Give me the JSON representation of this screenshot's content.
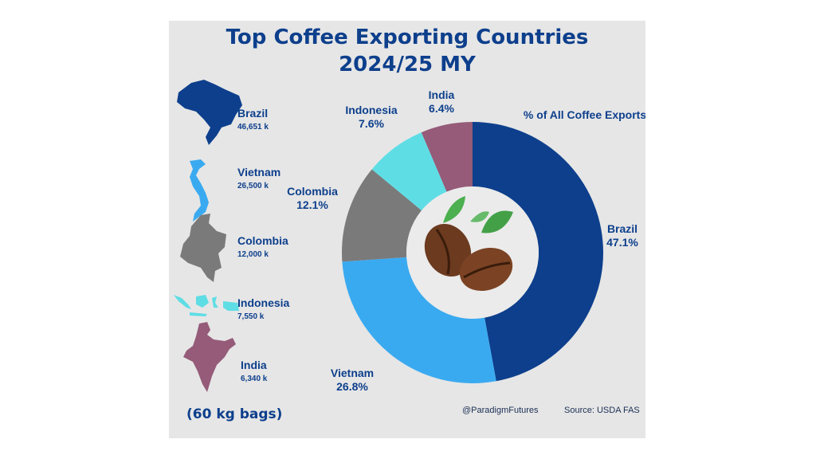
{
  "title_line1": "Top Coffee Exporting Countries",
  "title_line2": "2024/25 MY",
  "chart_subtitle": "% of All Coffee Exports",
  "unit_note": "(60 kg bags)",
  "handle": "@ParadigmFutures",
  "source": "Source: USDA FAS",
  "countries": [
    {
      "name": "Brazil",
      "value": "46,651 k",
      "color": "#0d3f8c",
      "icon": "brazil-map-icon"
    },
    {
      "name": "Vietnam",
      "value": "26,500 k",
      "color": "#3aaaf0",
      "icon": "vietnam-map-icon"
    },
    {
      "name": "Colombia",
      "value": "12,000 k",
      "color": "#7a7a7a",
      "icon": "colombia-map-icon"
    },
    {
      "name": "Indonesia",
      "value": "7,550 k",
      "color": "#5fdde5",
      "icon": "indonesia-map-icon"
    },
    {
      "name": "India",
      "value": "6,340 k",
      "color": "#955b78",
      "icon": "india-map-icon"
    }
  ],
  "chart_data": {
    "type": "pie",
    "title": "% of All Coffee Exports",
    "categories": [
      "Brazil",
      "Vietnam",
      "Colombia",
      "Indonesia",
      "India"
    ],
    "values": [
      47.1,
      26.8,
      12.1,
      7.6,
      6.4
    ],
    "labels": [
      "47.1%",
      "26.8%",
      "12.1%",
      "7.6%",
      "6.4%"
    ],
    "colors": [
      "#0d3f8c",
      "#3aaaf0",
      "#7a7a7a",
      "#5fdde5",
      "#955b78"
    ],
    "donut": true
  }
}
